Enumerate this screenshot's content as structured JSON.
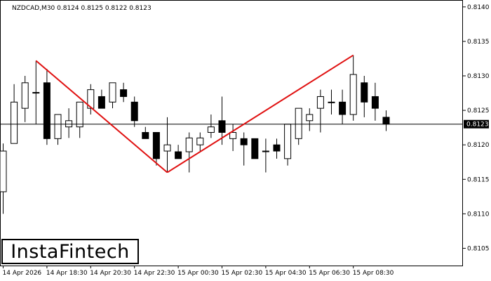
{
  "header": {
    "symbol_text": "NZDCAD,M30  0.8124 0.8125 0.8122 0.8123"
  },
  "logo": {
    "text": "InstaFintech"
  },
  "chart_data": {
    "type": "candlestick",
    "title": "NZDCAD,M30  0.8124 0.8125 0.8122 0.8123",
    "ylim": [
      0.81025,
      0.8141
    ],
    "y_ticks": [
      "0.8140",
      "0.8135",
      "0.8130",
      "0.8125",
      "0.8120",
      "0.8115",
      "0.8110",
      "0.8105"
    ],
    "x_tick_labels": [
      "14 Apr 2026",
      "14 Apr 18:30",
      "14 Apr 20:30",
      "14 Apr 22:30",
      "15 Apr 00:30",
      "15 Apr 02:30",
      "15 Apr 04:30",
      "15 Apr 06:30",
      "15 Apr 08:30"
    ],
    "x_tick_bar_index": [
      0,
      4,
      8,
      12,
      16,
      20,
      24,
      28,
      32
    ],
    "current_price": 0.8123,
    "current_price_label": "0.8123",
    "colors": {
      "up_body": "#ffffff",
      "down_body": "#000000",
      "wick": "#000000",
      "pattern_line": "#e01010",
      "price_line": "#000000",
      "price_label_bg": "#000000",
      "price_label_text": "#ffffff"
    },
    "candles": [
      {
        "o": 0.81132,
        "h": 0.81202,
        "l": 0.811,
        "c": 0.81191
      },
      {
        "o": 0.81202,
        "h": 0.81288,
        "l": 0.81202,
        "c": 0.81262
      },
      {
        "o": 0.81253,
        "h": 0.813,
        "l": 0.81233,
        "c": 0.8129
      },
      {
        "o": 0.81276,
        "h": 0.81322,
        "l": 0.8123,
        "c": 0.81276
      },
      {
        "o": 0.8129,
        "h": 0.8131,
        "l": 0.812,
        "c": 0.81209
      },
      {
        "o": 0.81209,
        "h": 0.81244,
        "l": 0.812,
        "c": 0.81244
      },
      {
        "o": 0.81226,
        "h": 0.81253,
        "l": 0.8121,
        "c": 0.81235
      },
      {
        "o": 0.81226,
        "h": 0.81262,
        "l": 0.8121,
        "c": 0.81262
      },
      {
        "o": 0.81253,
        "h": 0.81288,
        "l": 0.81244,
        "c": 0.8128
      },
      {
        "o": 0.8127,
        "h": 0.8128,
        "l": 0.81253,
        "c": 0.81253
      },
      {
        "o": 0.81262,
        "h": 0.8129,
        "l": 0.81253,
        "c": 0.8129
      },
      {
        "o": 0.8128,
        "h": 0.8129,
        "l": 0.81262,
        "c": 0.8127
      },
      {
        "o": 0.81262,
        "h": 0.8127,
        "l": 0.81226,
        "c": 0.81235
      },
      {
        "o": 0.81218,
        "h": 0.81226,
        "l": 0.81209,
        "c": 0.81209
      },
      {
        "o": 0.81218,
        "h": 0.81218,
        "l": 0.8117,
        "c": 0.8118
      },
      {
        "o": 0.81191,
        "h": 0.8124,
        "l": 0.8116,
        "c": 0.812
      },
      {
        "o": 0.8119,
        "h": 0.812,
        "l": 0.8118,
        "c": 0.8118
      },
      {
        "o": 0.8119,
        "h": 0.81218,
        "l": 0.8116,
        "c": 0.8121
      },
      {
        "o": 0.812,
        "h": 0.81218,
        "l": 0.81191,
        "c": 0.8121
      },
      {
        "o": 0.81218,
        "h": 0.81244,
        "l": 0.8121,
        "c": 0.81226
      },
      {
        "o": 0.81235,
        "h": 0.8127,
        "l": 0.812,
        "c": 0.81218
      },
      {
        "o": 0.81209,
        "h": 0.8123,
        "l": 0.81191,
        "c": 0.81218
      },
      {
        "o": 0.81209,
        "h": 0.81218,
        "l": 0.8117,
        "c": 0.812
      },
      {
        "o": 0.81209,
        "h": 0.81209,
        "l": 0.8118,
        "c": 0.8118
      },
      {
        "o": 0.81191,
        "h": 0.81209,
        "l": 0.8116,
        "c": 0.81191
      },
      {
        "o": 0.812,
        "h": 0.81209,
        "l": 0.8118,
        "c": 0.81191
      },
      {
        "o": 0.8118,
        "h": 0.8123,
        "l": 0.8117,
        "c": 0.8123
      },
      {
        "o": 0.81209,
        "h": 0.81253,
        "l": 0.812,
        "c": 0.81253
      },
      {
        "o": 0.81235,
        "h": 0.81253,
        "l": 0.8122,
        "c": 0.81244
      },
      {
        "o": 0.81253,
        "h": 0.8128,
        "l": 0.81218,
        "c": 0.8127
      },
      {
        "o": 0.81262,
        "h": 0.8128,
        "l": 0.81244,
        "c": 0.81262
      },
      {
        "o": 0.81262,
        "h": 0.8128,
        "l": 0.8123,
        "c": 0.81244
      },
      {
        "o": 0.81244,
        "h": 0.8133,
        "l": 0.81235,
        "c": 0.81302
      },
      {
        "o": 0.8129,
        "h": 0.813,
        "l": 0.8124,
        "c": 0.81262
      },
      {
        "o": 0.8127,
        "h": 0.8129,
        "l": 0.81235,
        "c": 0.81253
      },
      {
        "o": 0.8124,
        "h": 0.8125,
        "l": 0.8122,
        "c": 0.8123
      }
    ],
    "pattern": {
      "name": "Double Top",
      "points": [
        {
          "bar": 3,
          "price": 0.81322
        },
        {
          "bar": 15,
          "price": 0.8116
        },
        {
          "bar": 32,
          "price": 0.8133
        }
      ]
    }
  }
}
